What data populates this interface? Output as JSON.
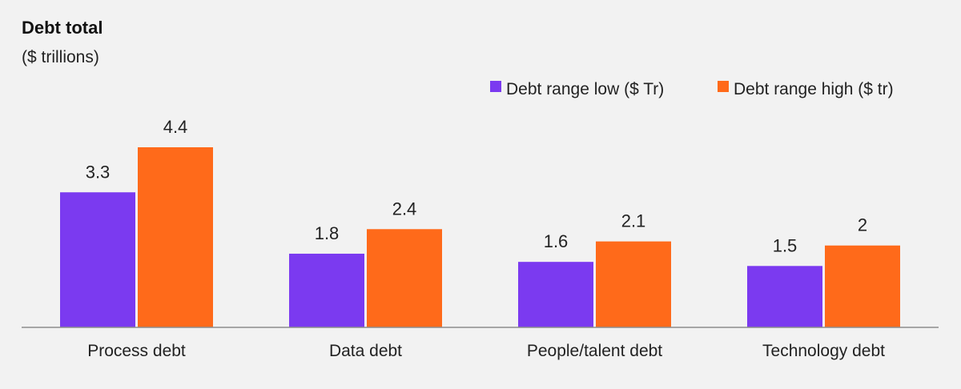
{
  "chart_data": {
    "type": "bar",
    "title": "Debt total",
    "subtitle": "($ trillions)",
    "categories": [
      "Process debt",
      "Data debt",
      "People/talent debt",
      "Technology debt"
    ],
    "series": [
      {
        "name": "Debt range low ($ Tr)",
        "values": [
          3.3,
          1.8,
          1.6,
          1.5
        ],
        "labels": [
          "3.3",
          "1.8",
          "1.6",
          "1.5"
        ],
        "color": "#7b3af0"
      },
      {
        "name": "Debt range high ($ tr)",
        "values": [
          4.4,
          2.4,
          2.1,
          2.0
        ],
        "labels": [
          "4.4",
          "2.4",
          "2.1",
          "2"
        ],
        "color": "#ff6a1a"
      }
    ],
    "ylim": [
      0,
      4.4
    ],
    "grid": false,
    "legend_position": "top-right",
    "axis_color": "#8c8c8c"
  }
}
